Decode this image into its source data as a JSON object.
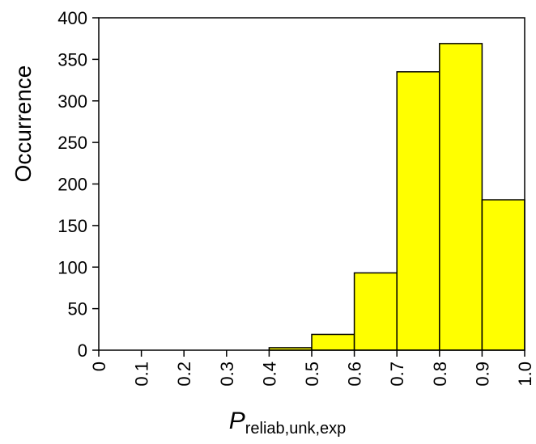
{
  "chart_data": {
    "type": "bar",
    "subtype": "histogram",
    "title": "",
    "xlabel": {
      "main": "P",
      "subscript": "reliab,unk,exp"
    },
    "ylabel": "Occurrence",
    "xlim": [
      0,
      1.0
    ],
    "ylim": [
      0,
      400
    ],
    "xticks": [
      "0",
      "0.1",
      "0.2",
      "0.3",
      "0.4",
      "0.5",
      "0.6",
      "0.7",
      "0.8",
      "0.9",
      "1.0"
    ],
    "yticks": [
      "0",
      "50",
      "100",
      "150",
      "200",
      "250",
      "300",
      "350",
      "400"
    ],
    "bins": [
      {
        "x0": 0.4,
        "x1": 0.5,
        "value": 3
      },
      {
        "x0": 0.5,
        "x1": 0.6,
        "value": 19
      },
      {
        "x0": 0.6,
        "x1": 0.7,
        "value": 93
      },
      {
        "x0": 0.7,
        "x1": 0.8,
        "value": 335
      },
      {
        "x0": 0.8,
        "x1": 0.9,
        "value": 369
      },
      {
        "x0": 0.9,
        "x1": 1.0,
        "value": 181
      }
    ],
    "bar_color": "#ffff00",
    "bar_edge_color": "#000000",
    "grid": false,
    "legend": "none"
  }
}
